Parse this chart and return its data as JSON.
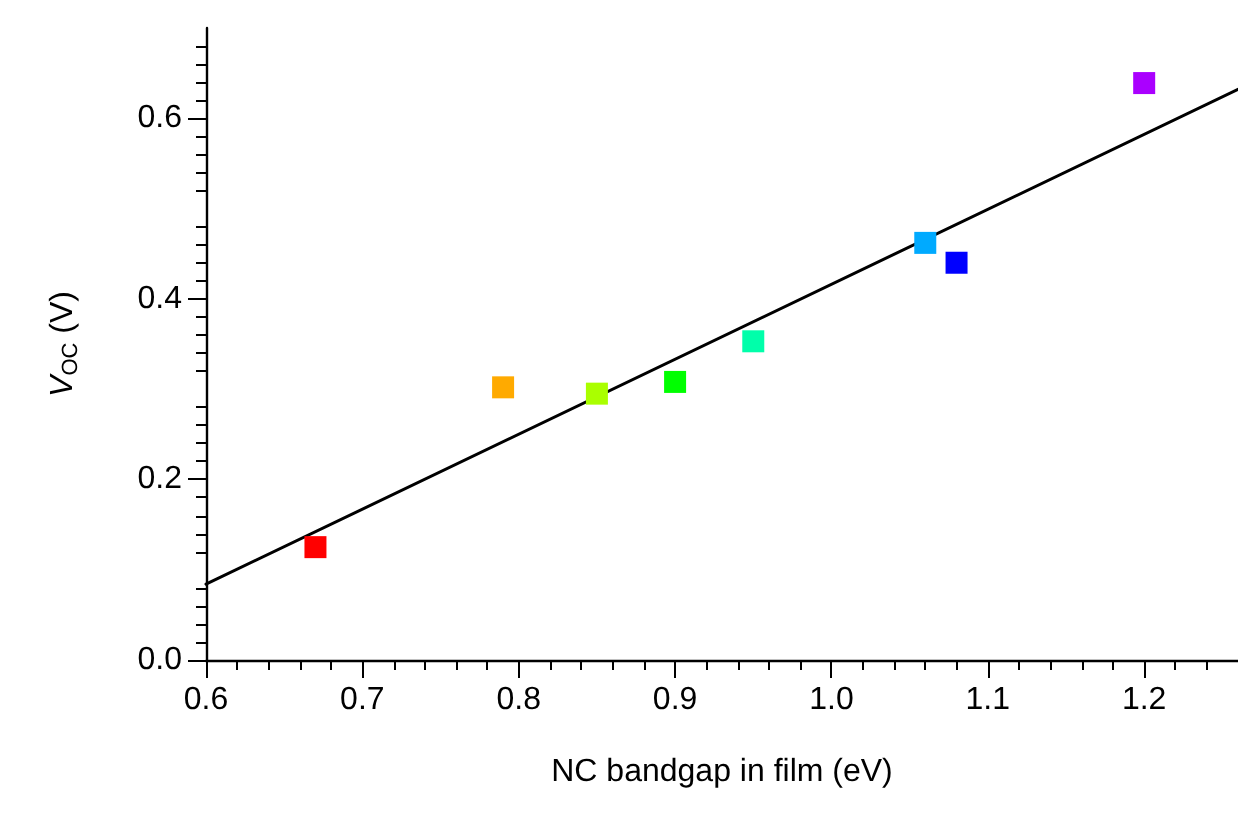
{
  "chart_data": {
    "type": "scatter",
    "xlabel": "NC bandgap in film (eV)",
    "ylabel": "V$_{OC}$ (V)",
    "xlim": [
      0.6,
      1.26
    ],
    "xticks": [
      0.6,
      0.7,
      0.8,
      0.9,
      {
        "value": 1,
        "label": "1.0"
      },
      1.1,
      1.2
    ],
    "ylim": [
      0,
      0.7
    ],
    "yticks": [
      {
        "value": 0,
        "label": "0.0"
      },
      0.2,
      0.4,
      0.6
    ],
    "grid": false,
    "marker": "square",
    "series": [
      {
        "x": [
          0.67,
          0.79,
          0.85,
          0.9,
          0.95,
          1.06,
          1.08,
          1.2
        ],
        "values": [
          0.125,
          0.302,
          0.295,
          0.308,
          0.353,
          0.462,
          0.44,
          0.639
        ],
        "colors": [
          "#ff0000",
          "#ffaa00",
          "#aaff00",
          "#00ff00",
          "#00ffaa",
          "#00aaff",
          "#0000ff",
          "#aa00ff"
        ]
      },
      {
        "type": "line",
        "x": [
          0.6,
          1.26
        ],
        "values": [
          0.084,
          0.632
        ],
        "color": "#000000",
        "marker": "none",
        "line_style": "solid"
      }
    ]
  }
}
